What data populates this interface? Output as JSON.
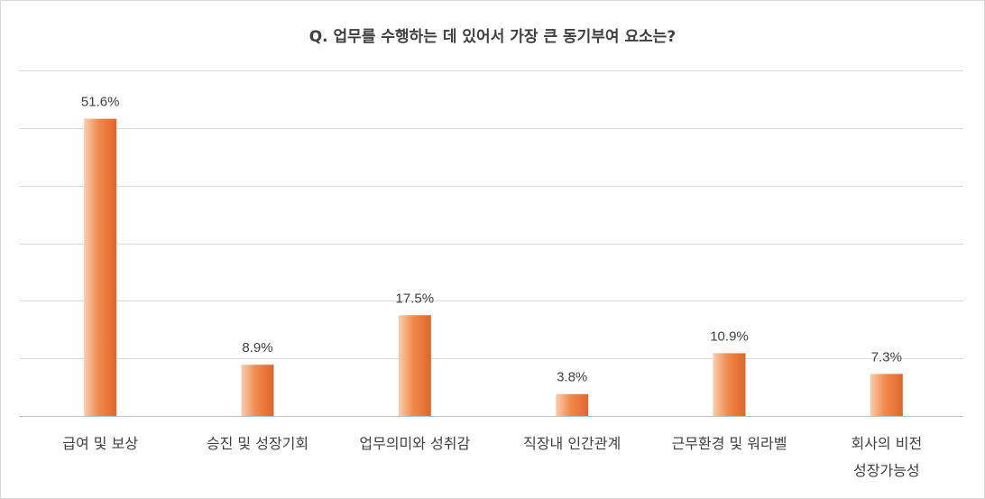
{
  "chart_data": {
    "type": "bar",
    "title": "Q. 업무를 수행하는 데 있어서 가장 큰 동기부여 요소는?",
    "categories": [
      "급여 및 보상",
      "승진 및 성장기회",
      "업무의미와 성취감",
      "직장내 인간관계",
      "근무환경 및 워라벨",
      "회사의 비전\n성장가능성"
    ],
    "values": [
      51.6,
      8.9,
      17.5,
      3.8,
      10.9,
      7.3
    ],
    "data_labels": [
      "51.6%",
      "8.9%",
      "17.5%",
      "3.8%",
      "10.9%",
      "7.3%"
    ],
    "unit": "%",
    "ylim": [
      0,
      60
    ],
    "grid": true,
    "legend": "none",
    "bar_color": "#ED7D31"
  }
}
